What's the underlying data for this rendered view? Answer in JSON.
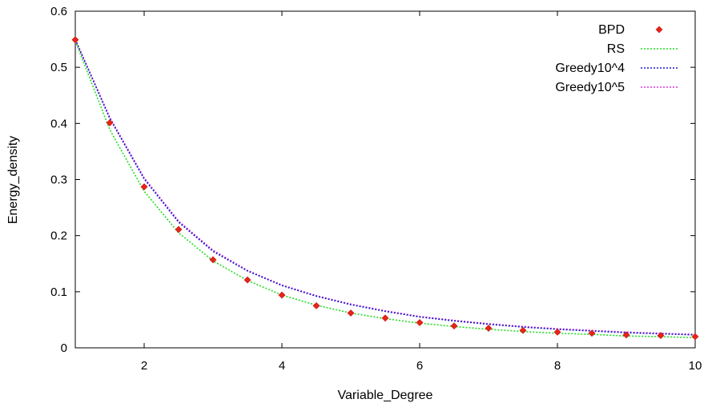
{
  "chart_data": {
    "type": "line",
    "xlabel": "Variable_Degree",
    "ylabel": "Energy_density",
    "xlim": [
      1,
      10
    ],
    "ylim": [
      0,
      0.6
    ],
    "x_ticks": [
      2,
      4,
      6,
      8,
      10
    ],
    "y_ticks": [
      0,
      0.1,
      0.2,
      0.3,
      0.4,
      0.5,
      0.6
    ],
    "grid": false,
    "legend_position": "top-right",
    "series": [
      {
        "name": "BPD",
        "style": "points",
        "color": "#e8231a",
        "x": [
          1,
          1.5,
          2,
          2.5,
          3,
          3.5,
          4,
          4.5,
          5,
          5.5,
          6,
          6.5,
          7,
          7.5,
          8,
          8.5,
          9,
          9.5,
          10
        ],
        "y": [
          0.549,
          0.401,
          0.287,
          0.211,
          0.157,
          0.121,
          0.094,
          0.075,
          0.062,
          0.053,
          0.045,
          0.039,
          0.035,
          0.031,
          0.028,
          0.026,
          0.023,
          0.022,
          0.02
        ]
      },
      {
        "name": "RS",
        "style": "dotted",
        "color": "#22dd22",
        "x": [
          1,
          1.5,
          2,
          2.5,
          3,
          3.5,
          4,
          4.5,
          5,
          5.5,
          6,
          6.5,
          7,
          7.5,
          8,
          8.5,
          9,
          9.5,
          10
        ],
        "y": [
          0.547,
          0.389,
          0.279,
          0.205,
          0.155,
          0.12,
          0.094,
          0.076,
          0.062,
          0.052,
          0.044,
          0.038,
          0.033,
          0.029,
          0.026,
          0.024,
          0.021,
          0.02,
          0.018
        ]
      },
      {
        "name": "Greedy10^4",
        "style": "dotted",
        "color": "#1a1acc",
        "x": [
          1,
          1.5,
          2,
          2.5,
          3,
          3.5,
          4,
          4.5,
          5,
          5.5,
          6,
          6.5,
          7,
          7.5,
          8,
          8.5,
          9,
          9.5,
          10
        ],
        "y": [
          0.549,
          0.409,
          0.301,
          0.224,
          0.172,
          0.137,
          0.111,
          0.092,
          0.077,
          0.065,
          0.055,
          0.048,
          0.042,
          0.037,
          0.033,
          0.03,
          0.027,
          0.025,
          0.023
        ]
      },
      {
        "name": "Greedy10^5",
        "style": "dotted",
        "color": "#dd33dd",
        "x": [
          1,
          1.5,
          2,
          2.5,
          3,
          3.5,
          4,
          4.5,
          5,
          5.5,
          6,
          6.5,
          7,
          7.5,
          8,
          8.5,
          9,
          9.5,
          10
        ],
        "y": [
          0.55,
          0.411,
          0.303,
          0.226,
          0.174,
          0.138,
          0.112,
          0.093,
          0.078,
          0.066,
          0.056,
          0.049,
          0.043,
          0.038,
          0.034,
          0.031,
          0.028,
          0.026,
          0.024
        ]
      }
    ]
  }
}
